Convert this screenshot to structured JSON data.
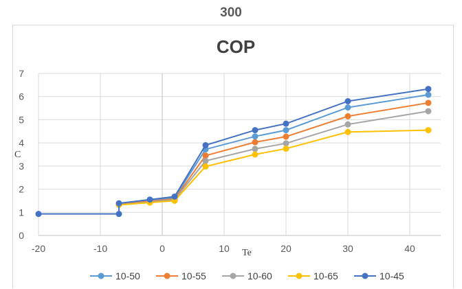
{
  "top_label": "300",
  "chart_data": {
    "type": "line",
    "title": "COP",
    "xlabel": "Te",
    "ylabel": "C",
    "xlim": [
      -20,
      45
    ],
    "ylim": [
      0,
      7
    ],
    "xticks": [
      -20,
      -10,
      0,
      10,
      20,
      30,
      40
    ],
    "yticks": [
      0,
      1,
      2,
      3,
      4,
      5,
      6,
      7
    ],
    "grid": true,
    "legend_position": "bottom",
    "series": [
      {
        "name": "10-50",
        "color": "#5B9BD5",
        "points": [
          [
            -7,
            1.37
          ],
          [
            -2,
            1.52
          ],
          [
            2,
            1.63
          ],
          [
            7,
            3.72
          ],
          [
            15,
            4.28
          ],
          [
            20,
            4.55
          ],
          [
            30,
            5.53
          ],
          [
            43,
            6.08
          ]
        ]
      },
      {
        "name": "10-55",
        "color": "#ED7D31",
        "points": [
          [
            -7,
            1.35
          ],
          [
            -2,
            1.48
          ],
          [
            2,
            1.58
          ],
          [
            7,
            3.45
          ],
          [
            15,
            4.03
          ],
          [
            20,
            4.27
          ],
          [
            30,
            5.15
          ],
          [
            43,
            5.73
          ]
        ]
      },
      {
        "name": "10-60",
        "color": "#A5A5A5",
        "points": [
          [
            -7,
            1.33
          ],
          [
            -2,
            1.45
          ],
          [
            2,
            1.55
          ],
          [
            7,
            3.22
          ],
          [
            15,
            3.74
          ],
          [
            20,
            3.98
          ],
          [
            30,
            4.8
          ],
          [
            43,
            5.37
          ]
        ]
      },
      {
        "name": "10-65",
        "color": "#FFC000",
        "points": [
          [
            -7,
            1.32
          ],
          [
            -2,
            1.42
          ],
          [
            2,
            1.5
          ],
          [
            7,
            2.98
          ],
          [
            15,
            3.5
          ],
          [
            20,
            3.75
          ],
          [
            30,
            4.47
          ],
          [
            43,
            4.55
          ]
        ]
      },
      {
        "name": "10-45",
        "color": "#4472C4",
        "points": [
          [
            -20,
            0.93
          ],
          [
            -7,
            0.93
          ],
          [
            -7,
            1.39
          ],
          [
            -2,
            1.55
          ],
          [
            2,
            1.68
          ],
          [
            7,
            3.9
          ],
          [
            15,
            4.55
          ],
          [
            20,
            4.83
          ],
          [
            30,
            5.8
          ],
          [
            43,
            6.33
          ]
        ]
      }
    ]
  }
}
